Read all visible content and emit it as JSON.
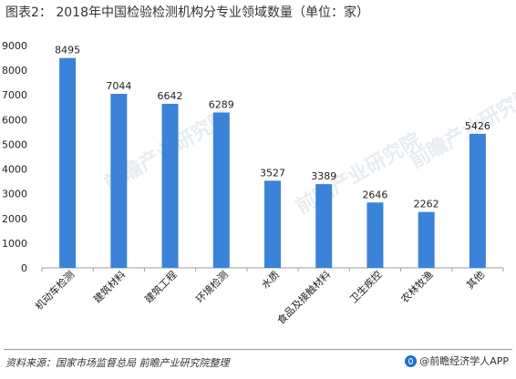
{
  "title": "图表2：  2018年中国检验检测机构分专业领域数量（单位：家）",
  "source": "资料来源：国家市场监督总局  前瞻产业研究院整理",
  "brand": "@前瞻经济学人APP",
  "watermark": "前瞻产业研究院",
  "colors": {
    "bar": "#3b82d9",
    "axis": "#9e9e9e",
    "text": "#222222"
  },
  "chart_data": {
    "type": "bar",
    "categories": [
      "机动车检测",
      "建筑材料",
      "建筑工程",
      "环境检测",
      "水质",
      "食品及接触材料",
      "卫生疾控",
      "农林牧渔",
      "其他"
    ],
    "values": [
      8495,
      7044,
      6642,
      6289,
      3527,
      3389,
      2646,
      2262,
      5426
    ],
    "data_labels": [
      "8495",
      "7044",
      "6642",
      "6289",
      "3527",
      "3389",
      "2646",
      "2262",
      "5426"
    ],
    "ylim": [
      0,
      9000
    ],
    "yticks": [
      0,
      1000,
      2000,
      3000,
      4000,
      5000,
      6000,
      7000,
      8000,
      9000
    ],
    "ytick_labels": [
      "0",
      "1000",
      "2000",
      "3000",
      "4000",
      "5000",
      "6000",
      "7000",
      "8000",
      "9000"
    ],
    "grid": false,
    "legend": "none"
  }
}
